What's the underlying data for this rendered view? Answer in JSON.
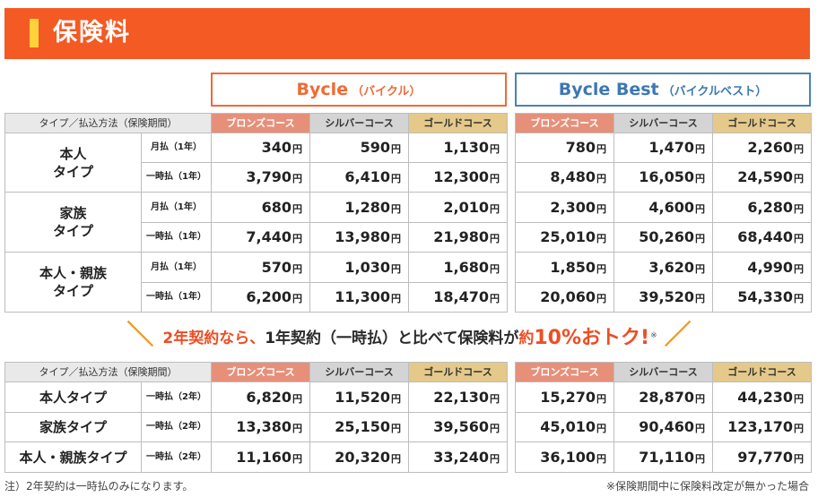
{
  "header": {
    "title": "保険料"
  },
  "plans": [
    {
      "name": "Bycle",
      "sub": "（バイクル）",
      "color": "#f06a34"
    },
    {
      "name": "Bycle Best",
      "sub": "（バイクルベスト）",
      "color": "#3c78b2"
    }
  ],
  "table_header": {
    "type_col": "タイプ／払込方法（保険期間）",
    "bronze": "ブロンズコース",
    "silver": "シルバーコース",
    "gold": "ゴールドコース"
  },
  "yen": "円",
  "table1": {
    "rows": [
      {
        "type_line1": "本人",
        "type_line2": "タイプ",
        "monthly": {
          "label": "月払（1年）",
          "bycle": [
            "340",
            "590",
            "1,130"
          ],
          "best": [
            "780",
            "1,470",
            "2,260"
          ]
        },
        "lump": {
          "label": "一時払（1年）",
          "bycle": [
            "3,790",
            "6,410",
            "12,300"
          ],
          "best": [
            "8,480",
            "16,050",
            "24,590"
          ]
        }
      },
      {
        "type_line1": "家族",
        "type_line2": "タイプ",
        "monthly": {
          "label": "月払（1年）",
          "bycle": [
            "680",
            "1,280",
            "2,010"
          ],
          "best": [
            "2,300",
            "4,600",
            "6,280"
          ]
        },
        "lump": {
          "label": "一時払（1年）",
          "bycle": [
            "7,440",
            "13,980",
            "21,980"
          ],
          "best": [
            "25,010",
            "50,260",
            "68,440"
          ]
        }
      },
      {
        "type_line1": "本人・親族",
        "type_line2": "タイプ",
        "monthly": {
          "label": "月払（1年）",
          "bycle": [
            "570",
            "1,030",
            "1,680"
          ],
          "best": [
            "1,850",
            "3,620",
            "4,990"
          ]
        },
        "lump": {
          "label": "一時払（1年）",
          "bycle": [
            "6,200",
            "11,300",
            "18,470"
          ],
          "best": [
            "20,060",
            "39,520",
            "54,330"
          ]
        }
      }
    ]
  },
  "promo": {
    "slash_left": "＼",
    "part1": "2年契約なら、",
    "part2": "1年契約（一時払）と比べて保険料が",
    "part3": "約",
    "big": "10%おトク!",
    "note": "※",
    "slash_right": "／"
  },
  "table2": {
    "rows": [
      {
        "type": "本人タイプ",
        "label": "一時払（2年）",
        "bycle": [
          "6,820",
          "11,520",
          "22,130"
        ],
        "best": [
          "15,270",
          "28,870",
          "44,230"
        ]
      },
      {
        "type": "家族タイプ",
        "label": "一時払（2年）",
        "bycle": [
          "13,380",
          "25,150",
          "39,560"
        ],
        "best": [
          "45,010",
          "90,460",
          "123,170"
        ]
      },
      {
        "type": "本人・親族タイプ",
        "label": "一時払（2年）",
        "bycle": [
          "11,160",
          "20,320",
          "33,240"
        ],
        "best": [
          "36,100",
          "71,110",
          "97,770"
        ]
      }
    ]
  },
  "footnotes": {
    "left": "注）2年契約は一時払のみになります。",
    "right": "※保険期間中に保険料改定が無かった場合"
  }
}
